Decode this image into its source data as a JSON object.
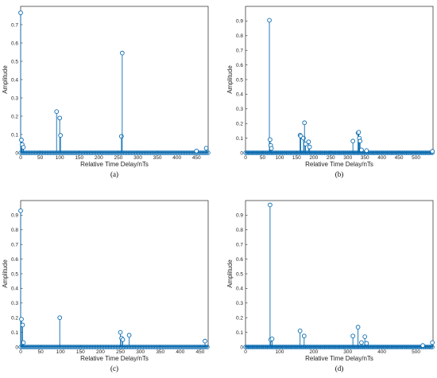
{
  "chart_data": [
    {
      "type": "stem",
      "caption": "(a)",
      "xlabel": "Relative Time Delay/nTs",
      "ylabel": "Amplitude",
      "xlim": [
        0,
        480
      ],
      "ylim": [
        0,
        0.8
      ],
      "xticks": [
        0,
        50,
        100,
        150,
        200,
        250,
        300,
        350,
        400,
        450
      ],
      "yticks": [
        0,
        0.1,
        0.2,
        0.3,
        0.4,
        0.5,
        0.6,
        0.7
      ],
      "zero_stems_every": 4,
      "points": [
        [
          0,
          0.765
        ],
        [
          2,
          0.07
        ],
        [
          4,
          0.045
        ],
        [
          7,
          0.03
        ],
        [
          92,
          0.225
        ],
        [
          100,
          0.19
        ],
        [
          102,
          0.095
        ],
        [
          258,
          0.09
        ],
        [
          260,
          0.545
        ],
        [
          450,
          0.01
        ],
        [
          475,
          0.025
        ]
      ]
    },
    {
      "type": "stem",
      "caption": "(b)",
      "xlabel": "Relative Time Delay/nTs",
      "ylabel": "Amplitude",
      "xlim": [
        0,
        550
      ],
      "ylim": [
        0,
        1
      ],
      "xticks": [
        0,
        50,
        100,
        150,
        200,
        250,
        300,
        350,
        400,
        450,
        500
      ],
      "yticks": [
        0,
        0.1,
        0.2,
        0.3,
        0.4,
        0.5,
        0.6,
        0.7,
        0.8,
        0.9
      ],
      "zero_stems_every": 4,
      "points": [
        [
          70,
          0.905
        ],
        [
          72,
          0.09
        ],
        [
          74,
          0.05
        ],
        [
          76,
          0.03
        ],
        [
          160,
          0.12
        ],
        [
          162,
          0.115
        ],
        [
          170,
          0.1
        ],
        [
          173,
          0.205
        ],
        [
          176,
          0.06
        ],
        [
          185,
          0.075
        ],
        [
          188,
          0.04
        ],
        [
          315,
          0.08
        ],
        [
          330,
          0.135
        ],
        [
          332,
          0.14
        ],
        [
          334,
          0.1
        ],
        [
          336,
          0.08
        ],
        [
          340,
          0.02
        ],
        [
          355,
          0.015
        ],
        [
          548,
          0.01
        ]
      ]
    },
    {
      "type": "stem",
      "caption": "(c)",
      "xlabel": "Relative Time Delay/nTs",
      "ylabel": "Amplitude",
      "xlim": [
        0,
        470
      ],
      "ylim": [
        0,
        1
      ],
      "xticks": [
        0,
        50,
        100,
        150,
        200,
        250,
        300,
        350,
        400,
        450
      ],
      "yticks": [
        0,
        0.1,
        0.2,
        0.3,
        0.4,
        0.5,
        0.6,
        0.7,
        0.8,
        0.9
      ],
      "zero_stems_every": 4,
      "points": [
        [
          0,
          0.93
        ],
        [
          2,
          0.19
        ],
        [
          5,
          0.15
        ],
        [
          7,
          0.03
        ],
        [
          98,
          0.2
        ],
        [
          250,
          0.1
        ],
        [
          253,
          0.06
        ],
        [
          256,
          0.05
        ],
        [
          272,
          0.08
        ],
        [
          462,
          0.04
        ]
      ]
    },
    {
      "type": "stem",
      "caption": "(d)",
      "xlabel": "Relative Time Delay/nTs",
      "ylabel": "Amplitude",
      "xlim": [
        0,
        550
      ],
      "ylim": [
        0,
        1
      ],
      "xticks": [
        0,
        100,
        200,
        300,
        400,
        500
      ],
      "yticks": [
        0,
        0.1,
        0.2,
        0.3,
        0.4,
        0.5,
        0.6,
        0.7,
        0.8,
        0.9
      ],
      "zero_stems_every": 4,
      "points": [
        [
          72,
          0.97
        ],
        [
          74,
          0.05
        ],
        [
          78,
          0.055
        ],
        [
          160,
          0.11
        ],
        [
          172,
          0.075
        ],
        [
          315,
          0.075
        ],
        [
          330,
          0.135
        ],
        [
          340,
          0.03
        ],
        [
          350,
          0.07
        ],
        [
          355,
          0.025
        ],
        [
          520,
          0.01
        ],
        [
          548,
          0.03
        ]
      ]
    }
  ]
}
